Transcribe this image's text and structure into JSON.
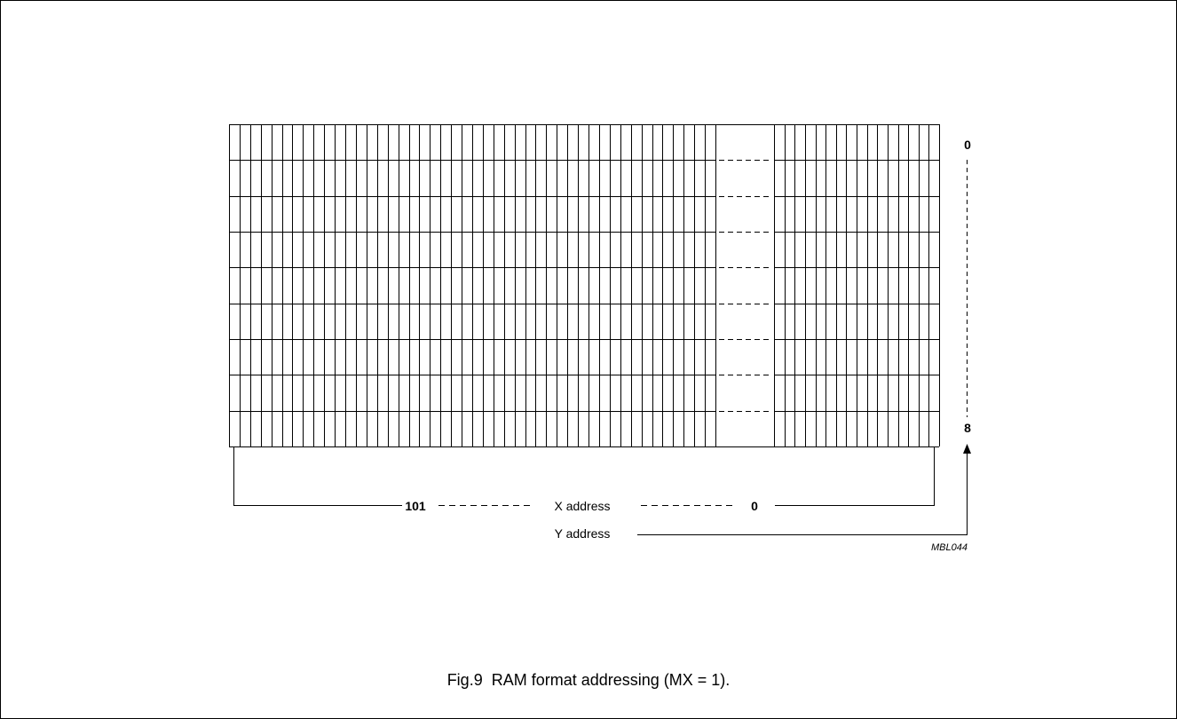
{
  "diagram": {
    "columns_left": 46,
    "columns_right": 16,
    "rows": 9,
    "y_top_label": "0",
    "y_bottom_label": "8",
    "x_left_label": "101",
    "x_right_label": "0",
    "x_address_label": "X address",
    "y_address_label": "Y address",
    "code_label": "MBL044"
  },
  "caption": "Fig.9  RAM format addressing (MX = 1)."
}
